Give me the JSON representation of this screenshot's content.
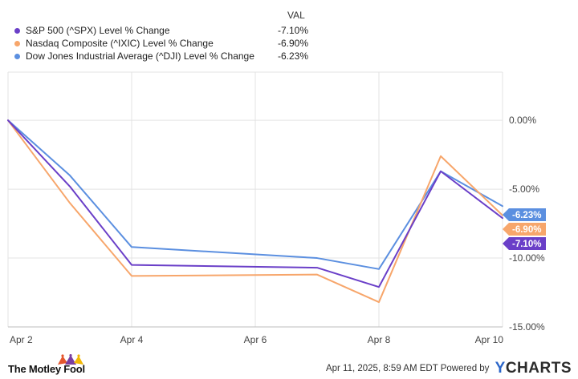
{
  "legend": {
    "header": "VAL",
    "items": [
      {
        "name": "S&P 500 (^SPX) Level % Change",
        "value": "-7.10%",
        "color": "#6a3fc8"
      },
      {
        "name": "Nasdaq Composite (^IXIC) Level % Change",
        "value": "-6.90%",
        "color": "#f7a66b"
      },
      {
        "name": "Dow Jones Industrial Average (^DJI) Level % Change",
        "value": "-6.23%",
        "color": "#5b8fe0"
      }
    ]
  },
  "chart_data": {
    "type": "line",
    "x": [
      "Apr 2",
      "Apr 3",
      "Apr 4",
      "Apr 7",
      "Apr 8",
      "Apr 9",
      "Apr 10"
    ],
    "x_tick_labels": [
      "Apr 2",
      "Apr 4",
      "Apr 6",
      "Apr 8",
      "Apr 10"
    ],
    "y_tick_labels": [
      "0.00%",
      "-5.00%",
      "-10.00%",
      "-15.00%"
    ],
    "y_ticks": [
      0,
      -5,
      -10,
      -15
    ],
    "ylim": [
      -15,
      3.5
    ],
    "grid": true,
    "series": [
      {
        "name": "S&P 500 (^SPX) Level % Change",
        "color": "#6a3fc8",
        "values": [
          0,
          -4.8,
          -10.5,
          -10.7,
          -12.1,
          -3.7,
          -7.1
        ],
        "end_label": "-7.10%"
      },
      {
        "name": "Nasdaq Composite (^IXIC) Level % Change",
        "color": "#f7a66b",
        "values": [
          0,
          -6.0,
          -11.3,
          -11.2,
          -13.2,
          -2.6,
          -6.9
        ],
        "end_label": "-6.90%"
      },
      {
        "name": "Dow Jones Industrial Average (^DJI) Level % Change",
        "color": "#5b8fe0",
        "values": [
          0,
          -4.0,
          -9.2,
          -10.0,
          -10.8,
          -3.7,
          -6.23
        ],
        "end_label": "-6.23%"
      }
    ]
  },
  "footer": {
    "brand": "The Motley Fool",
    "timestamp": "Apr 11, 2025, 8:59 AM EDT Powered by",
    "logo_y": "Y",
    "logo_rest": "CHARTS"
  }
}
